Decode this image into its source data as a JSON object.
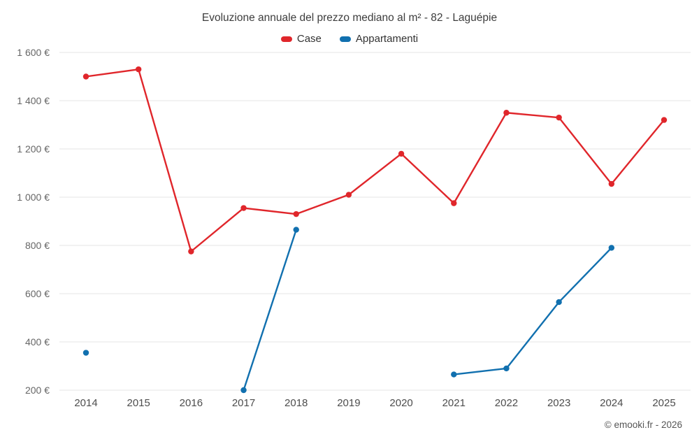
{
  "footer": {
    "credit": "© emooki.fr - 2026"
  },
  "chart_data": {
    "type": "line",
    "title": "Evoluzione annuale del prezzo mediano al m² - 82 - Laguépie",
    "x": [
      2014,
      2015,
      2016,
      2017,
      2018,
      2019,
      2020,
      2021,
      2022,
      2023,
      2024,
      2025
    ],
    "series": [
      {
        "name": "Case",
        "color": "#e0262b",
        "values": [
          1500,
          1530,
          775,
          955,
          930,
          1010,
          1180,
          975,
          1350,
          1330,
          1055,
          1320
        ]
      },
      {
        "name": "Appartamenti",
        "color": "#1170af",
        "values": [
          355,
          null,
          null,
          200,
          865,
          null,
          null,
          265,
          290,
          565,
          790,
          null
        ]
      }
    ],
    "ylim": [
      200,
      1600
    ],
    "ytick_step": 200,
    "yunit": "€",
    "ytick_labels": [
      "200 €",
      "400 €",
      "600 €",
      "800 €",
      "1 000 €",
      "1 200 €",
      "1 400 €",
      "1 600 €"
    ],
    "grid": "horizontal",
    "legend_position": "top",
    "colors": {
      "grid": "#e6e6e6",
      "axis_text_y": "#666666",
      "axis_text_x": "#4d4d4d",
      "title_text": "#3d3d3d"
    }
  }
}
